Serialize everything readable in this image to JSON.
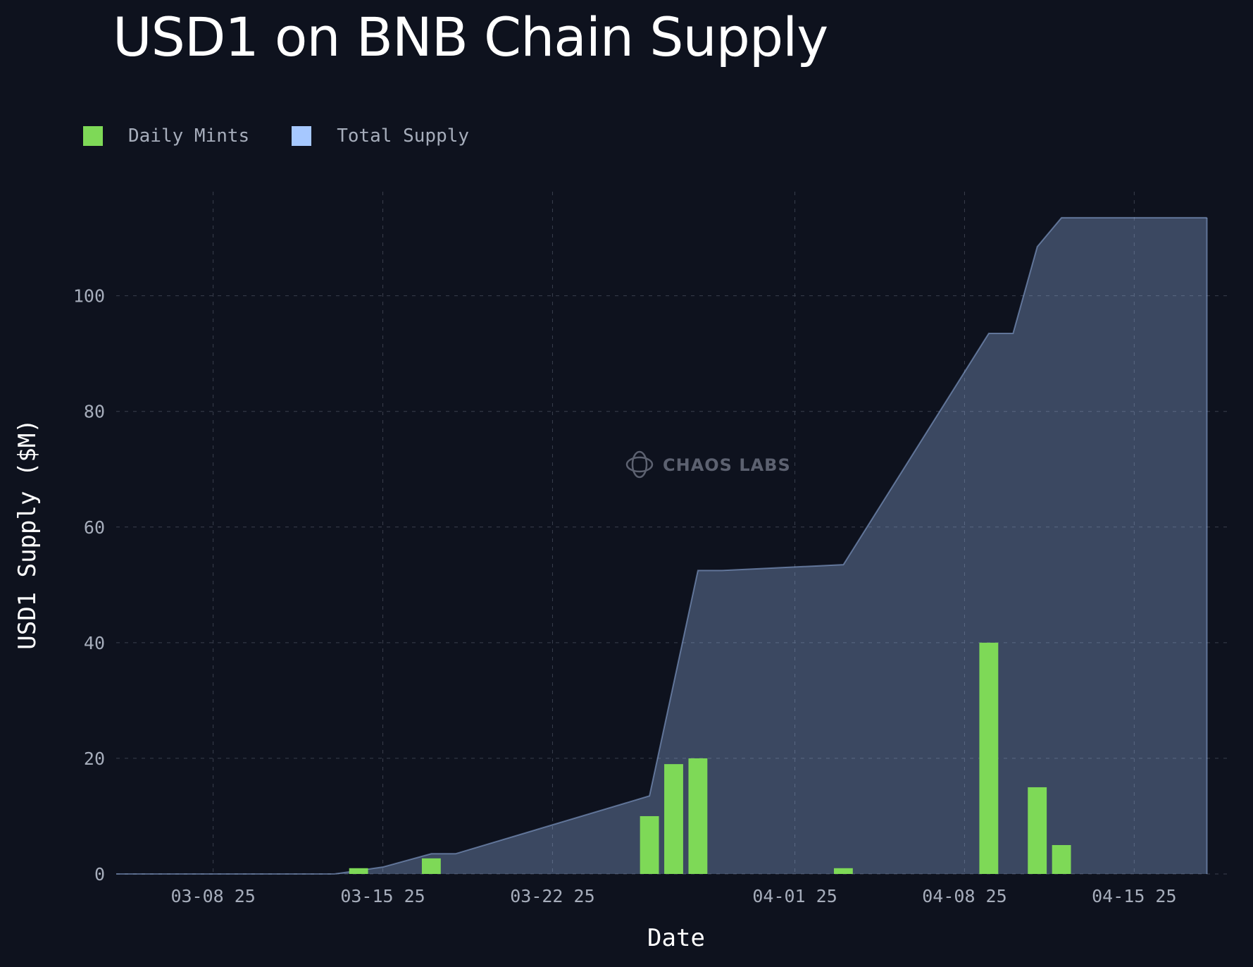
{
  "title": "USD1 on BNB Chain Supply",
  "legend": {
    "daily": {
      "label": "Daily Mints",
      "color": "#7ed957"
    },
    "total": {
      "label": "Total Supply",
      "color": "#a6c8ff"
    }
  },
  "watermark": "CHAOS LABS",
  "chart_data": {
    "type": "bar",
    "title": "USD1 on BNB Chain Supply",
    "xlabel": "Date",
    "ylabel": "USD1 Supply ($M)",
    "ylim": [
      0,
      118
    ],
    "xlim": [
      "2025-03-04",
      "2025-04-19"
    ],
    "grid": true,
    "legend_position": "top-left",
    "yticks": [
      0,
      20,
      40,
      60,
      80,
      100
    ],
    "xticks": [
      {
        "date": "2025-03-08",
        "label": "03-08 25"
      },
      {
        "date": "2025-03-15",
        "label": "03-15 25"
      },
      {
        "date": "2025-03-22",
        "label": "03-22 25"
      },
      {
        "date": "2025-04-01",
        "label": "04-01 25"
      },
      {
        "date": "2025-04-08",
        "label": "04-08 25"
      },
      {
        "date": "2025-04-15",
        "label": "04-15 25"
      }
    ],
    "series": [
      {
        "name": "Daily Mints",
        "type": "bar",
        "color": "#7ed957",
        "points": [
          {
            "x": "2025-03-14",
            "y": 1
          },
          {
            "x": "2025-03-17",
            "y": 2.7
          },
          {
            "x": "2025-03-26",
            "y": 10
          },
          {
            "x": "2025-03-27",
            "y": 19
          },
          {
            "x": "2025-03-28",
            "y": 20
          },
          {
            "x": "2025-04-03",
            "y": 1
          },
          {
            "x": "2025-04-09",
            "y": 40
          },
          {
            "x": "2025-04-11",
            "y": 15
          },
          {
            "x": "2025-04-12",
            "y": 5
          }
        ]
      },
      {
        "name": "Total Supply",
        "type": "area",
        "color": "#a6c8ff",
        "points": [
          {
            "x": "2025-03-04",
            "y": 0
          },
          {
            "x": "2025-03-13",
            "y": 0
          },
          {
            "x": "2025-03-15",
            "y": 1.2
          },
          {
            "x": "2025-03-17",
            "y": 3.5
          },
          {
            "x": "2025-03-18",
            "y": 3.5
          },
          {
            "x": "2025-03-26",
            "y": 13.5
          },
          {
            "x": "2025-03-28",
            "y": 52.5
          },
          {
            "x": "2025-03-29",
            "y": 52.5
          },
          {
            "x": "2025-04-03",
            "y": 53.5
          },
          {
            "x": "2025-04-09",
            "y": 93.5
          },
          {
            "x": "2025-04-10",
            "y": 93.5
          },
          {
            "x": "2025-04-11",
            "y": 108.5
          },
          {
            "x": "2025-04-12",
            "y": 113.5
          },
          {
            "x": "2025-04-18",
            "y": 113.5
          }
        ]
      }
    ]
  }
}
